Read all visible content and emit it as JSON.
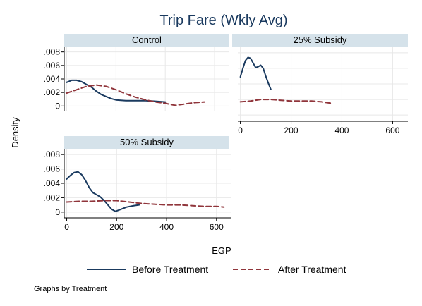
{
  "chart_data": {
    "type": "line",
    "title": "Trip Fare (Wkly Avg)",
    "xlabel": "EGP",
    "ylabel": "Density",
    "note": "Graphs by Treatment",
    "grid": true,
    "legend_position": "bottom",
    "xlim": [
      -10,
      660
    ],
    "ylim": [
      -0.0008,
      0.0088
    ],
    "x_ticks": [
      0,
      200,
      400,
      600
    ],
    "x_tick_labels": [
      "0",
      "200",
      "400",
      "600"
    ],
    "y_ticks": [
      0,
      0.002,
      0.004,
      0.006,
      0.008
    ],
    "y_tick_labels": [
      "0",
      ".002",
      ".004",
      ".006",
      ".008"
    ],
    "colors": {
      "before": "#1a3a5f",
      "after": "#90353b",
      "strip": "#d5e2ea",
      "grid": "#e8e8e8"
    },
    "legend": [
      {
        "key": "before",
        "label": "Before Treatment"
      },
      {
        "key": "after",
        "label": "After Treatment"
      }
    ],
    "panels": [
      {
        "label": "Control",
        "series": [
          {
            "key": "before",
            "x": [
              0,
              20,
              40,
              60,
              80,
              100,
              120,
              140,
              160,
              180,
              200,
              240,
              280,
              320,
              360,
              400
            ],
            "y": [
              0.0035,
              0.0038,
              0.0038,
              0.0036,
              0.0032,
              0.0028,
              0.0022,
              0.0017,
              0.0014,
              0.0011,
              0.0009,
              0.0008,
              0.0008,
              0.0008,
              0.0007,
              0.0006
            ]
          },
          {
            "key": "after",
            "x": [
              0,
              40,
              80,
              120,
              160,
              200,
              240,
              280,
              320,
              360,
              400,
              440,
              480,
              520,
              560
            ],
            "y": [
              0.0019,
              0.0024,
              0.0029,
              0.0031,
              0.0029,
              0.0024,
              0.0018,
              0.0013,
              0.0009,
              0.0006,
              0.0004,
              0.0001,
              0.0003,
              0.0005,
              0.0006
            ]
          }
        ]
      },
      {
        "label": "25% Subsidy",
        "series": [
          {
            "key": "before",
            "x": [
              0,
              10,
              20,
              30,
              40,
              50,
              60,
              70,
              80,
              90,
              100,
              110,
              120
            ],
            "y": [
              0.0049,
              0.006,
              0.007,
              0.0074,
              0.0073,
              0.0067,
              0.0061,
              0.0062,
              0.0064,
              0.006,
              0.005,
              0.0041,
              0.0033
            ]
          },
          {
            "key": "after",
            "x": [
              0,
              40,
              80,
              120,
              160,
              200,
              240,
              280,
              320,
              360
            ],
            "y": [
              0.0017,
              0.0018,
              0.002,
              0.002,
              0.0019,
              0.0018,
              0.0018,
              0.0018,
              0.0017,
              0.0015
            ]
          }
        ]
      },
      {
        "label": "50% Subsidy",
        "series": [
          {
            "key": "before",
            "x": [
              0,
              15,
              30,
              45,
              60,
              75,
              90,
              105,
              120,
              135,
              150,
              165,
              180,
              195,
              210,
              240,
              270,
              290
            ],
            "y": [
              0.0046,
              0.0051,
              0.0055,
              0.0056,
              0.0052,
              0.0044,
              0.0034,
              0.0027,
              0.0024,
              0.0021,
              0.0016,
              0.001,
              0.0004,
              0.0001,
              0.0003,
              0.0007,
              0.0009,
              0.001
            ]
          },
          {
            "key": "after",
            "x": [
              0,
              50,
              100,
              150,
              200,
              250,
              300,
              350,
              400,
              450,
              500,
              550,
              600,
              630
            ],
            "y": [
              0.0014,
              0.0015,
              0.0015,
              0.0016,
              0.0016,
              0.0014,
              0.0012,
              0.0011,
              0.001,
              0.001,
              0.0009,
              0.0008,
              0.0008,
              0.0007
            ]
          }
        ]
      }
    ]
  }
}
